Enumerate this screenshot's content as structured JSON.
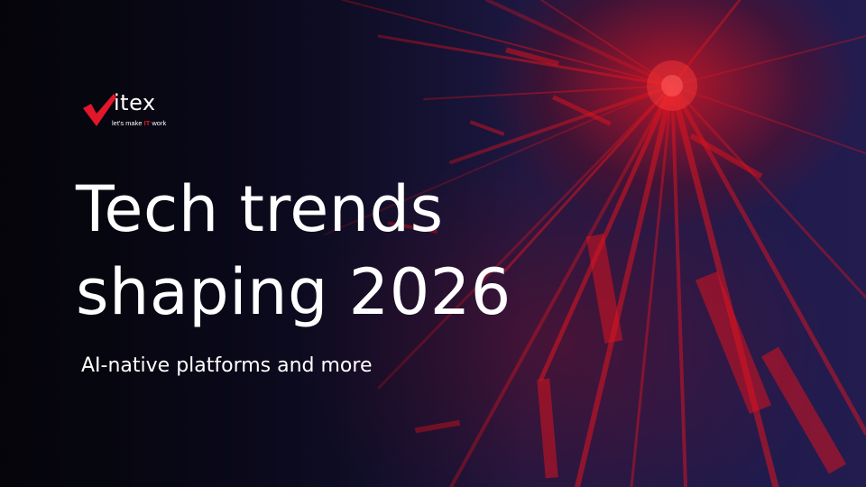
{
  "logo": {
    "wordmark_letter": "v",
    "wordmark_rest": "itex",
    "tagline_prefix": "let's make ",
    "tagline_highlight": "IT",
    "tagline_suffix": " work",
    "icon": "checkmark-icon"
  },
  "headline": {
    "line1": "Tech trends",
    "line2": "shaping 2026"
  },
  "subtitle": "AI-native platforms and more",
  "colors": {
    "accent": "#e3162b",
    "text": "#ffffff",
    "background": "#1c1842"
  }
}
